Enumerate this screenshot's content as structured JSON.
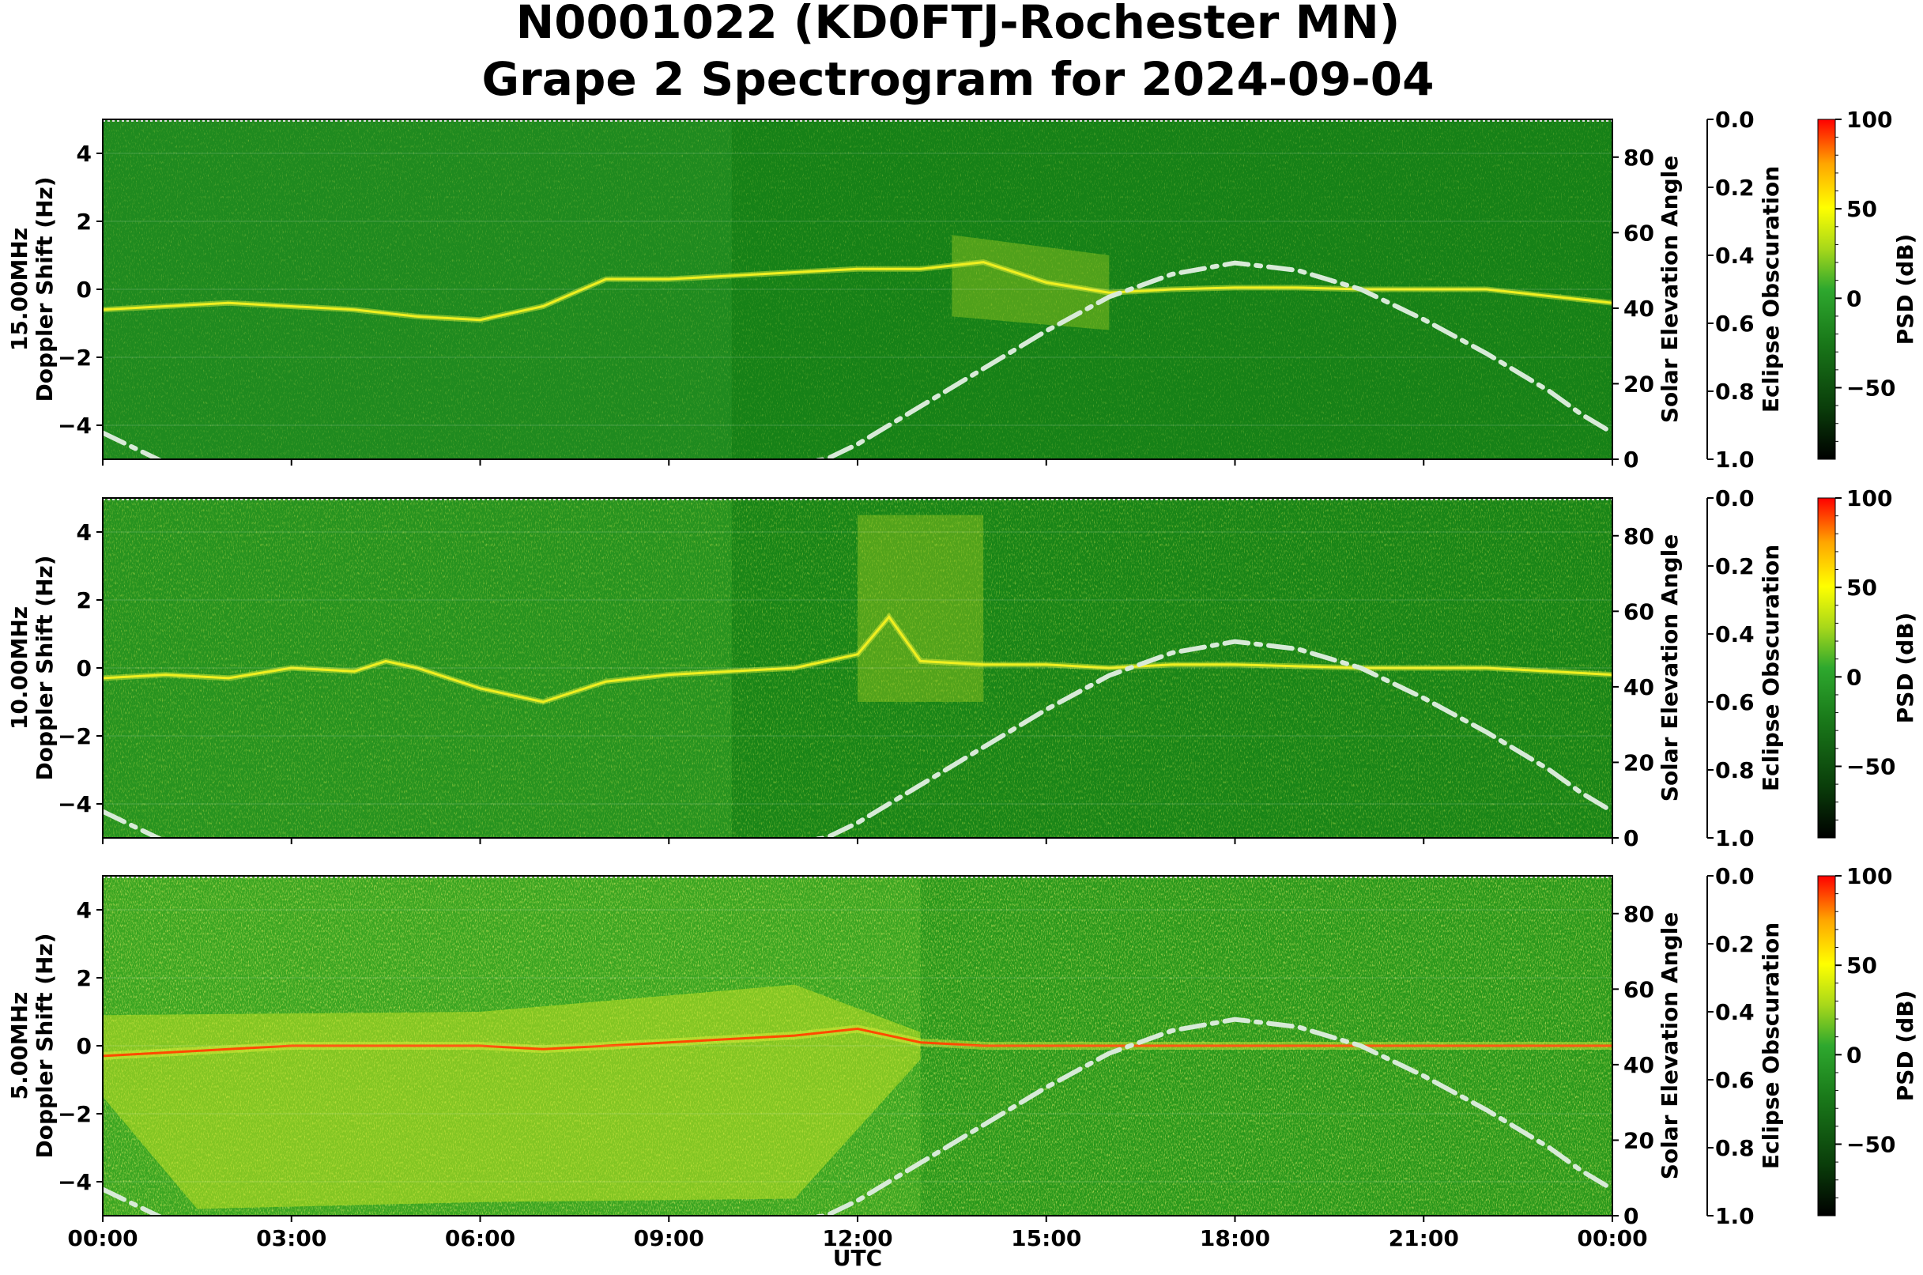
{
  "title_line1": "N0001022 (KD0FTJ-Rochester MN)",
  "title_line2": "Grape 2 Spectrogram for 2024-09-04",
  "xlabel": "UTC",
  "x_ticks": [
    "00:00",
    "03:00",
    "06:00",
    "09:00",
    "12:00",
    "15:00",
    "18:00",
    "21:00",
    "00:00"
  ],
  "right_axis_label": "Solar Elevation Angle",
  "eclipse_axis_label": "Eclipse Obscuration",
  "colorbar_label": "PSD (dB)",
  "chart_data": {
    "type": "heatmap",
    "x_range_hours": [
      0,
      24
    ],
    "y_range_hz": [
      -5,
      5
    ],
    "solar_elevation_range_deg": [
      0,
      90
    ],
    "eclipse_obscuration_range": [
      0,
      1
    ],
    "psd_range_db": [
      -90,
      100
    ],
    "y_ticks": [
      "4",
      "2",
      "0",
      "−2",
      "−4"
    ],
    "y_tick_values": [
      4,
      2,
      0,
      -2,
      -4
    ],
    "elev_ticks": [
      "0",
      "20",
      "40",
      "60",
      "80"
    ],
    "elev_tick_values": [
      0,
      20,
      40,
      60,
      80
    ],
    "eclipse_ticks": [
      "0.0",
      "0.2",
      "0.4",
      "0.6",
      "0.8",
      "1.0"
    ],
    "eclipse_tick_values": [
      0,
      0.2,
      0.4,
      0.6,
      0.8,
      1.0
    ],
    "colorbar_ticks": [
      "100",
      "50",
      "0",
      "−50"
    ],
    "colorbar_tick_values": [
      100,
      50,
      0,
      -50
    ],
    "colormap": [
      "#000000",
      "#0a3d0a",
      "#1a7a1a",
      "#2ea82e",
      "#a8d81a",
      "#ffff00",
      "#ffa500",
      "#ff0000"
    ],
    "solar_elevation_curve": {
      "style": "dash-dot",
      "color": "#d8ead8",
      "hours": [
        0,
        0.5,
        1,
        2,
        3,
        4,
        5,
        6,
        7,
        8,
        9,
        10,
        11,
        11.5,
        12,
        13,
        14,
        15,
        16,
        17,
        18,
        18.5,
        19,
        20,
        21,
        22,
        23,
        23.5,
        24
      ],
      "elevation_deg": [
        7,
        3,
        -1,
        -9,
        -14,
        -17,
        -17,
        -15,
        -10,
        -5,
        -2,
        -1,
        -1,
        0,
        4,
        14,
        24,
        34,
        43,
        49,
        52,
        51,
        50,
        45,
        37,
        28,
        18,
        12,
        7
      ]
    },
    "panels": [
      {
        "ylabel_line1": "15.00MHz",
        "ylabel_line2": "Doppler Shift (Hz)",
        "description_trace": "night band ~-0.5 Hz, strong multipath 13:30-16:00, carrier at 0 Hz 16:00-24:00",
        "carrier_hours": [
          0,
          2,
          4,
          5,
          6,
          7,
          8,
          9,
          10,
          11,
          12,
          13,
          14,
          15,
          16,
          17,
          18,
          19,
          20,
          21,
          22,
          23,
          24
        ],
        "carrier_hz": [
          -0.6,
          -0.4,
          -0.6,
          -0.8,
          -0.9,
          -0.5,
          0.3,
          0.3,
          0.4,
          0.5,
          0.6,
          0.6,
          0.8,
          0.2,
          -0.1,
          0.0,
          0.05,
          0.05,
          0.0,
          0.0,
          0.0,
          -0.2,
          -0.4
        ],
        "intensity": "low"
      },
      {
        "ylabel_line1": "10.00MHz",
        "ylabel_line2": "Doppler Shift (Hz)",
        "description_trace": "carrier near 0 Hz with fluctuations, spread 12:00-14:00",
        "carrier_hours": [
          0,
          1,
          2,
          3,
          4,
          4.5,
          5,
          6,
          7,
          8,
          9,
          10,
          11,
          12,
          12.5,
          13,
          14,
          15,
          16,
          17,
          18,
          19,
          20,
          21,
          22,
          23,
          24
        ],
        "carrier_hz": [
          -0.3,
          -0.2,
          -0.3,
          0.0,
          -0.1,
          0.2,
          0.0,
          -0.6,
          -1.0,
          -0.4,
          -0.2,
          -0.1,
          0.0,
          0.4,
          1.5,
          0.2,
          0.1,
          0.1,
          0.0,
          0.1,
          0.1,
          0.05,
          0.0,
          0.0,
          0.0,
          -0.1,
          -0.2
        ],
        "intensity": "medium"
      },
      {
        "ylabel_line1": "5.00MHz",
        "ylabel_line2": "Doppler Shift (Hz)",
        "description_trace": "strong red carrier at 0 Hz through night, broad yellow spread 00:00-13:00",
        "carrier_hours": [
          0,
          1,
          2,
          3,
          4,
          5,
          6,
          7,
          8,
          9,
          10,
          11,
          12,
          13,
          14,
          15,
          16,
          17,
          18,
          19,
          20,
          21,
          22,
          23,
          24
        ],
        "carrier_hz": [
          -0.3,
          -0.2,
          -0.1,
          0.0,
          0.0,
          0.0,
          0.0,
          -0.1,
          0.0,
          0.1,
          0.2,
          0.3,
          0.5,
          0.1,
          0.0,
          0.0,
          0.0,
          0.0,
          0.0,
          0.0,
          0.0,
          0.0,
          0.0,
          0.0,
          0.0
        ],
        "intensity": "high"
      }
    ]
  }
}
